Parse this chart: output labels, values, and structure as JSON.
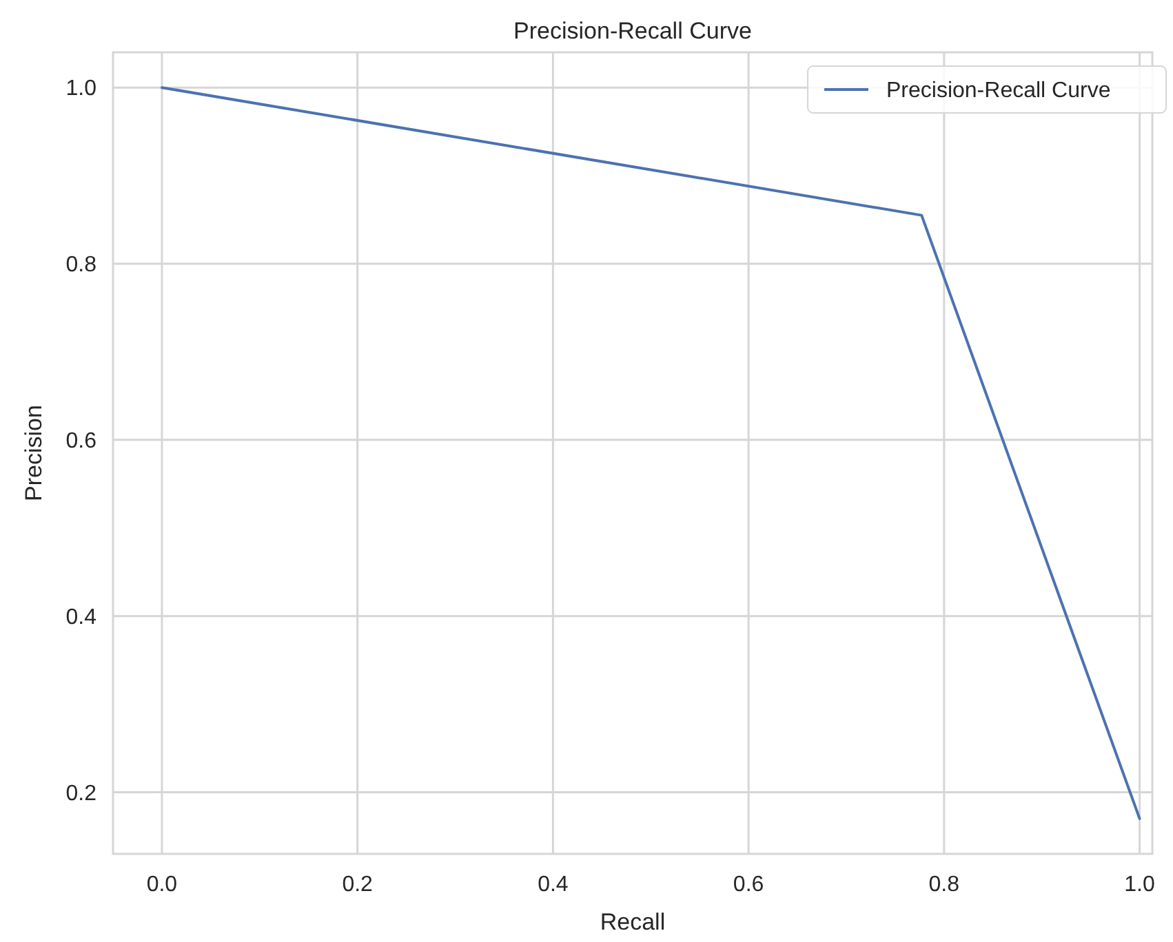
{
  "chart_data": {
    "type": "line",
    "title": "Precision-Recall Curve",
    "xlabel": "Recall",
    "ylabel": "Precision",
    "x": [
      0,
      0.777,
      1.0
    ],
    "series": [
      {
        "name": "Precision-Recall Curve",
        "color": "#4c72b0",
        "values": [
          1.0,
          0.855,
          0.17
        ]
      }
    ],
    "xlim": [
      -0.05,
      1.013
    ],
    "xticks": [
      {
        "value": 0,
        "label": "0.0"
      },
      0.2,
      0.4,
      0.6,
      0.8,
      {
        "value": 1,
        "label": "1.0"
      }
    ],
    "ylim": [
      0.13,
      1.04
    ],
    "yticks": [
      0.2,
      0.4,
      0.6,
      0.8,
      {
        "value": 1,
        "label": "1.0"
      }
    ],
    "grid": true,
    "legend": "top right",
    "marker": "none",
    "line_style": "solid"
  }
}
